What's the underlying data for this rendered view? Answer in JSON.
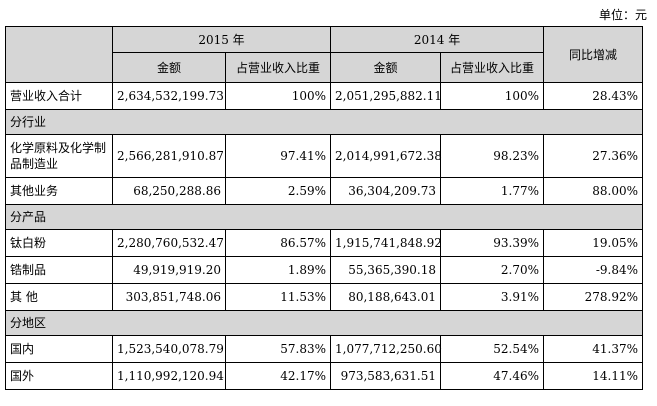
{
  "unit_label": "单位：元",
  "header": {
    "year2015": "2015 年",
    "year2014": "2014 年",
    "yoy": "同比增减",
    "amount": "金额",
    "share": "占营业收入比重"
  },
  "total": {
    "label": "营业收入合计",
    "a2015": "2,634,532,199.73",
    "p2015": "100%",
    "a2014": "2,051,295,882.11",
    "p2014": "100%",
    "yoy": "28.43%"
  },
  "sections": {
    "industry": "分行业",
    "product": "分产品",
    "region": "分地区"
  },
  "rows": [
    {
      "label": "化学原料及化学制品制造业",
      "a2015": "2,566,281,910.87",
      "p2015": "97.41%",
      "a2014": "2,014,991,672.38",
      "p2014": "98.23%",
      "yoy": "27.36%"
    },
    {
      "label": "其他业务",
      "a2015": "68,250,288.86",
      "p2015": "2.59%",
      "a2014": "36,304,209.73",
      "p2014": "1.77%",
      "yoy": "88.00%"
    },
    {
      "label": "钛白粉",
      "a2015": "2,280,760,532.47",
      "p2015": "86.57%",
      "a2014": "1,915,741,848.92",
      "p2014": "93.39%",
      "yoy": "19.05%"
    },
    {
      "label": "锆制品",
      "a2015": "49,919,919.20",
      "p2015": "1.89%",
      "a2014": "55,365,390.18",
      "p2014": "2.70%",
      "yoy": "-9.84%"
    },
    {
      "label": "其 他",
      "a2015": "303,851,748.06",
      "p2015": "11.53%",
      "a2014": "80,188,643.01",
      "p2014": "3.91%",
      "yoy": "278.92%"
    },
    {
      "label": "国内",
      "a2015": "1,523,540,078.79",
      "p2015": "57.83%",
      "a2014": "1,077,712,250.60",
      "p2014": "52.54%",
      "yoy": "41.37%"
    },
    {
      "label": "国外",
      "a2015": "1,110,992,120.94",
      "p2015": "42.17%",
      "a2014": "973,583,631.51",
      "p2014": "47.46%",
      "yoy": "14.11%"
    }
  ]
}
